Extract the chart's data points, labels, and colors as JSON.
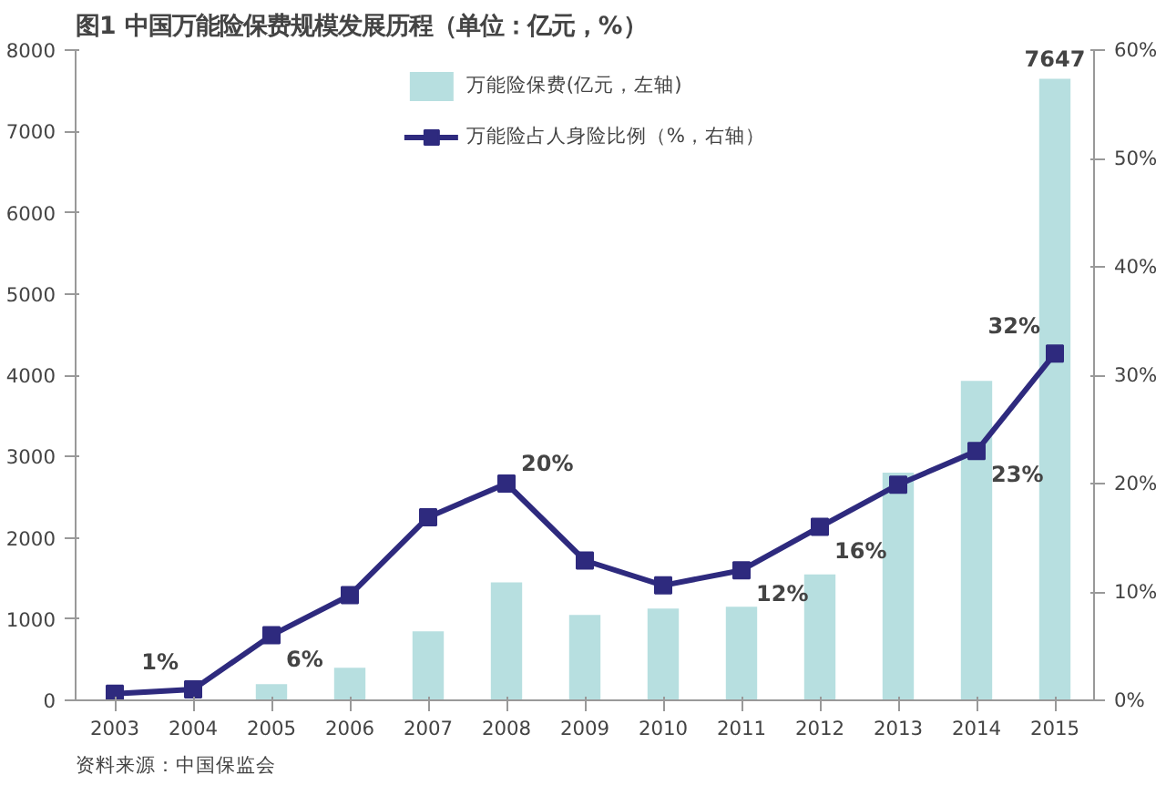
{
  "chart_data": {
    "type": "bar",
    "title": "图1  中国万能险保费规模发展历程（单位：亿元，%）",
    "categories": [
      "2003",
      "2004",
      "2005",
      "2006",
      "2007",
      "2008",
      "2009",
      "2010",
      "2011",
      "2012",
      "2013",
      "2014",
      "2015"
    ],
    "series": [
      {
        "name": "万能险保费(亿元，左轴)",
        "color": "#b7dfe0",
        "values": [
          0,
          null,
          200,
          400,
          850,
          1450,
          1050,
          1130,
          1150,
          1550,
          2800,
          3930,
          7647
        ],
        "value_labels": [
          null,
          null,
          null,
          null,
          null,
          null,
          null,
          null,
          null,
          null,
          null,
          null,
          "7647"
        ]
      },
      {
        "name": "万能险占人身险比例（%，右轴）",
        "type": "line",
        "axis": "y2",
        "color": "#2e2a7e",
        "values": [
          0.6,
          1,
          6,
          9.7,
          16.9,
          20,
          12.9,
          10.6,
          12,
          16,
          19.9,
          23,
          32
        ],
        "value_labels": [
          null,
          "1%",
          "6%",
          null,
          null,
          "20%",
          null,
          null,
          "12%",
          "16%",
          null,
          "23%",
          "32%"
        ]
      }
    ],
    "ylim": [
      0,
      8000
    ],
    "yticks": [
      0,
      1000,
      2000,
      3000,
      4000,
      5000,
      6000,
      7000,
      8000
    ],
    "y2lim": [
      0,
      60
    ],
    "y2ticks": [
      {
        "value": 0,
        "label": "0%"
      },
      {
        "value": 10,
        "label": "10%"
      },
      {
        "value": 20,
        "label": "20%"
      },
      {
        "value": 30,
        "label": "30%"
      },
      {
        "value": 40,
        "label": "40%"
      },
      {
        "value": 50,
        "label": "50%"
      },
      {
        "value": 60,
        "label": "60%"
      }
    ],
    "grid": false,
    "legend": "top",
    "marker": "square",
    "line_style": "solid",
    "annotations": [
      "资料来源：中国保监会"
    ]
  }
}
